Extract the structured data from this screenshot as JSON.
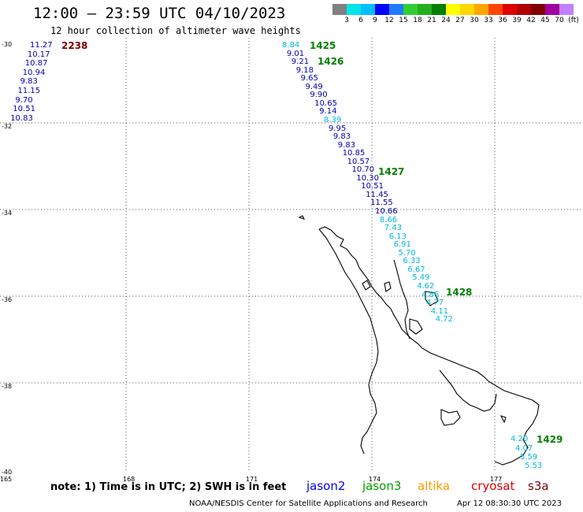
{
  "header": {
    "title": "12:00 — 23:59 UTC 04/10/2023",
    "subtitle": "12 hour collection of altimeter wave heights"
  },
  "color_scale": {
    "colors": [
      "#808080",
      "#00e5e5",
      "#00bfff",
      "#0000ff",
      "#1e7bff",
      "#32cd32",
      "#22b022",
      "#008000",
      "#ffff00",
      "#ffd700",
      "#ffa500",
      "#ff4500",
      "#e00000",
      "#b00000",
      "#800000",
      "#a000a0",
      "#c080ff",
      "#ff80ff",
      "#000000"
    ],
    "labels": [
      "3",
      "6",
      "9",
      "12",
      "15",
      "18",
      "21",
      "24",
      "27",
      "30",
      "33",
      "36",
      "39",
      "42",
      "45",
      "70",
      "(ft)"
    ]
  },
  "axes": {
    "lat_labels": [
      "-30",
      "-32",
      "-34",
      "-36",
      "-38",
      "-40"
    ],
    "lon_labels": [
      "165",
      "168",
      "171",
      "174",
      "177"
    ]
  },
  "tracks": {
    "jason2_left_time": "2238",
    "jason2_left_values": [
      "11.27",
      "10.17",
      "10.87",
      "10.94",
      "9.83",
      "11.15",
      "9.70",
      "10.51",
      "10.83"
    ],
    "main_values": [
      "8.84",
      "9.01",
      "9.21",
      "9.18",
      "9.65",
      "9.49",
      "9.90",
      "10.65",
      "9.14",
      "8.39",
      "9.95",
      "9.83",
      "9.83",
      "10.85",
      "10.57",
      "10.70",
      "10.30",
      "10.51",
      "11.45",
      "11.55",
      "10.66",
      "8.66",
      "7.43",
      "6.13",
      "6.91",
      "5.70",
      "6.33",
      "6.67",
      "5.49",
      "4.62",
      "4.86",
      "4.77",
      "4.11",
      "4.72"
    ],
    "main_times": [
      "1425",
      "1426",
      "1427",
      "1428"
    ],
    "south_time": "1429",
    "south_values": [
      "4.20",
      "4.07",
      "5.59",
      "5.53"
    ]
  },
  "legend": {
    "note": "note:  1) Time is in UTC;  2) SWH is in feet",
    "satellites": [
      "jason2",
      "jason3",
      "altika",
      "cryosat",
      "s3a"
    ],
    "sat_colors": [
      "#0000ff",
      "#00a000",
      "#ff9900",
      "#e00000",
      "#800000"
    ]
  },
  "footer": {
    "credit": "NOAA/NESDIS Center for Satellite Applications and Research",
    "timestamp": "Apr 12 08:30:30 UTC 2023"
  },
  "colors": {
    "time_green": "#008000",
    "time_darkred": "#800000",
    "value_blue": "#0000b0",
    "value_cyan": "#00b8e0"
  }
}
